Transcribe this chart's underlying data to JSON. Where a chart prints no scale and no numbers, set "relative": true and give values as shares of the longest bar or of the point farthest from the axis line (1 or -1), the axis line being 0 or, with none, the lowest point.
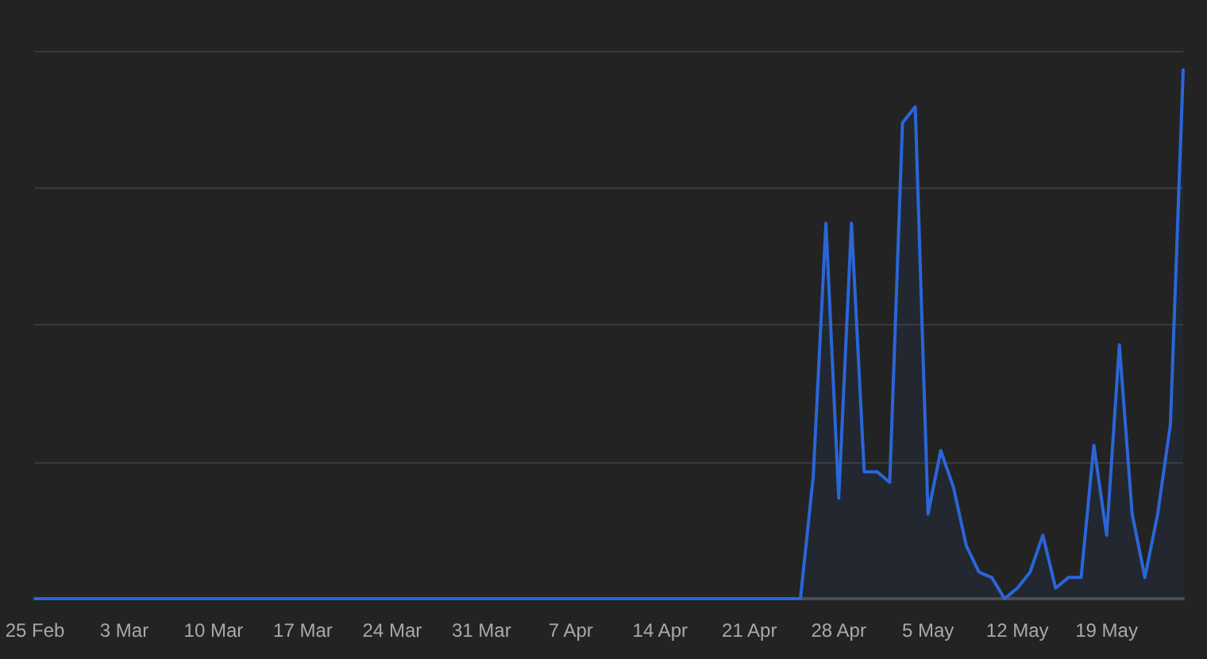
{
  "chart_data": {
    "type": "area",
    "relative": true,
    "grid": "y",
    "x": [
      "--02-25",
      "--02-26",
      "--02-27",
      "--02-28",
      "--02-29",
      "--03-01",
      "--03-02",
      "--03-03",
      "--03-04",
      "--03-05",
      "--03-06",
      "--03-07",
      "--03-08",
      "--03-09",
      "--03-10",
      "--03-11",
      "--03-12",
      "--03-13",
      "--03-14",
      "--03-15",
      "--03-16",
      "--03-17",
      "--03-18",
      "--03-19",
      "--03-20",
      "--03-21",
      "--03-22",
      "--03-23",
      "--03-24",
      "--03-25",
      "--03-26",
      "--03-27",
      "--03-28",
      "--03-29",
      "--03-30",
      "--03-31",
      "--04-01",
      "--04-02",
      "--04-03",
      "--04-04",
      "--04-05",
      "--04-06",
      "--04-07",
      "--04-08",
      "--04-09",
      "--04-10",
      "--04-11",
      "--04-12",
      "--04-13",
      "--04-14",
      "--04-15",
      "--04-16",
      "--04-17",
      "--04-18",
      "--04-19",
      "--04-20",
      "--04-21",
      "--04-22",
      "--04-23",
      "--04-24",
      "--04-25",
      "--04-26",
      "--04-27",
      "--04-28",
      "--04-29",
      "--04-30",
      "--05-01",
      "--05-02",
      "--05-03",
      "--05-04",
      "--05-05",
      "--05-06",
      "--05-07",
      "--05-08",
      "--05-09",
      "--05-10",
      "--05-11",
      "--05-12",
      "--05-13",
      "--05-14",
      "--05-15",
      "--05-16",
      "--05-17",
      "--05-18",
      "--05-19",
      "--05-20",
      "--05-21",
      "--05-22",
      "--05-23",
      "--05-24",
      "--05-25"
    ],
    "series": [
      {
        "color": "#2a66d8",
        "values": [
          0,
          0,
          0,
          0,
          0,
          0,
          0,
          0,
          0,
          0,
          0,
          0,
          0,
          0,
          0,
          0,
          0,
          0,
          0,
          0,
          0,
          0,
          0,
          0,
          0,
          0,
          0,
          0,
          0,
          0,
          0,
          0,
          0,
          0,
          0,
          0,
          0,
          0,
          0,
          0,
          0,
          0,
          0,
          0,
          0,
          0,
          0,
          0,
          0,
          0,
          0,
          0,
          0,
          0,
          0,
          0,
          0,
          0,
          0,
          0,
          0,
          0.23,
          0.71,
          0.19,
          0.71,
          0.24,
          0.24,
          0.22,
          0.9,
          0.93,
          0.16,
          0.28,
          0.21,
          0.1,
          0.05,
          0.04,
          0,
          0.02,
          0.05,
          0.12,
          0.02,
          0.04,
          0.04,
          0.29,
          0.12,
          0.48,
          0.16,
          0.04,
          0.16,
          0.33,
          1
        ]
      }
    ],
    "xlim": [
      "--02-25",
      "--05-25"
    ],
    "xticks": [
      {
        "value": "--02-25",
        "label": "25 Feb"
      },
      {
        "value": "--03-03",
        "label": "3 Mar"
      },
      {
        "value": "--03-10",
        "label": "10 Mar"
      },
      {
        "value": "--03-17",
        "label": "17 Mar"
      },
      {
        "value": "--03-24",
        "label": "24 Mar"
      },
      {
        "value": "--03-31",
        "label": "31 Mar"
      },
      {
        "value": "--04-07",
        "label": "7 Apr"
      },
      {
        "value": "--04-14",
        "label": "14 Apr"
      },
      {
        "value": "--04-21",
        "label": "21 Apr"
      },
      {
        "value": "--04-28",
        "label": "28 Apr"
      },
      {
        "value": "--05-05",
        "label": "5 May"
      },
      {
        "value": "--05-12",
        "label": "12 May"
      },
      {
        "value": "--05-19",
        "label": "19 May"
      }
    ]
  }
}
